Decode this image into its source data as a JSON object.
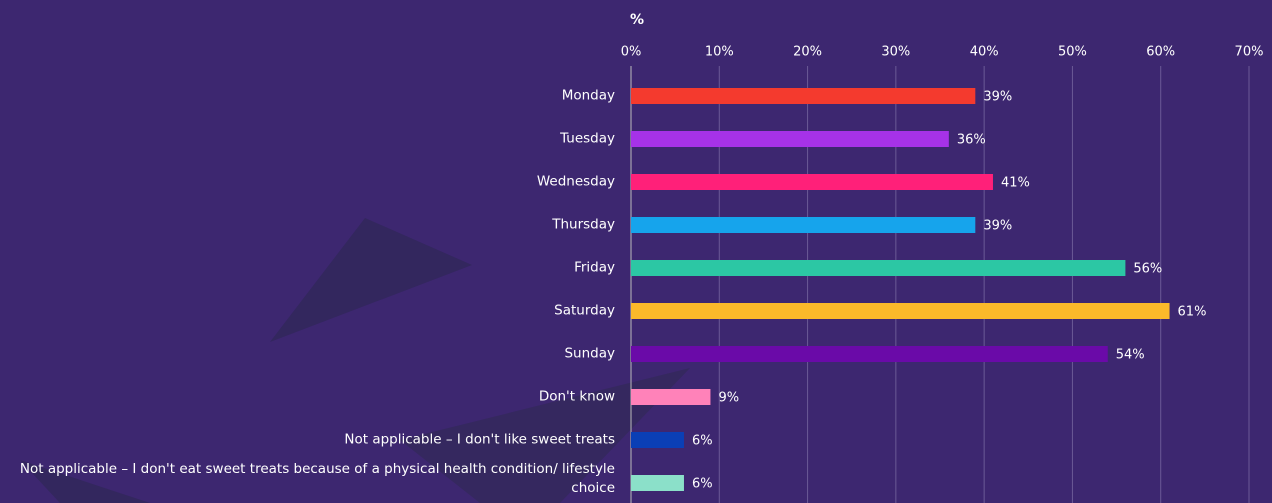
{
  "chart_data": {
    "type": "bar",
    "orientation": "horizontal",
    "x_label": "%",
    "categories": [
      "Monday",
      "Tuesday",
      "Wednesday",
      "Thursday",
      "Friday",
      "Saturday",
      "Sunday",
      "Don't know",
      "Not applicable – I don't like sweet treats",
      "Not applicable – I don't eat sweet treats because of a physical health condition/ lifestyle choice"
    ],
    "values": [
      39,
      36,
      41,
      39,
      56,
      61,
      54,
      9,
      6,
      6
    ],
    "value_labels": [
      "39%",
      "36%",
      "41%",
      "39%",
      "56%",
      "61%",
      "54%",
      "9%",
      "6%",
      "6%"
    ],
    "colors": [
      "#f43a2e",
      "#a632e8",
      "#ff2079",
      "#16a4ec",
      "#2cc7a4",
      "#fbb92a",
      "#6a0aa8",
      "#ff82b9",
      "#0a3fb5",
      "#8be0c9"
    ],
    "xlim": [
      0,
      70
    ],
    "xticks": [
      {
        "value": 0,
        "label": "0%"
      },
      {
        "value": 10,
        "label": "10%"
      },
      {
        "value": 20,
        "label": "20%"
      },
      {
        "value": 30,
        "label": "30%"
      },
      {
        "value": 40,
        "label": "40%"
      },
      {
        "value": 50,
        "label": "50%"
      },
      {
        "value": 60,
        "label": "60%"
      },
      {
        "value": 70,
        "label": "70%"
      }
    ],
    "grid": true
  }
}
